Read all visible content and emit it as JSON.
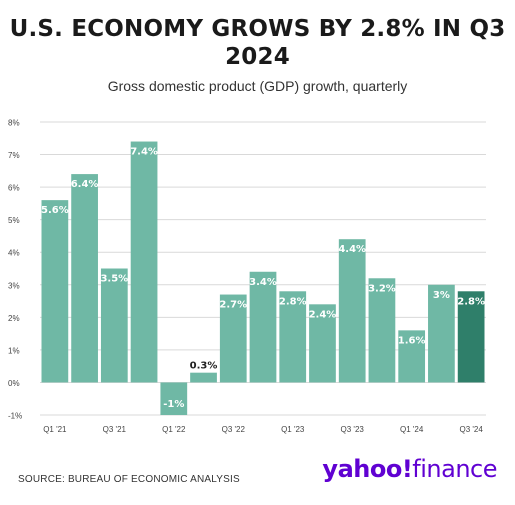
{
  "title": "U.S. ECONOMY GROWS BY 2.8% IN Q3 2024",
  "subtitle": "Gross domestic product (GDP) growth, quarterly",
  "source": "SOURCE: BUREAU OF ECONOMIC ANALYSIS",
  "logo": {
    "yahoo": "yahoo!",
    "finance": "finance"
  },
  "colors": {
    "bar": "#6fb8a5",
    "highlight": "#2f7f6a",
    "grid": "#d9d9d9"
  },
  "chart_data": {
    "type": "bar",
    "categories": [
      "Q1 '21",
      "Q2 '21",
      "Q3 '21",
      "Q4 '21",
      "Q1 '22",
      "Q2 '22",
      "Q3 '22",
      "Q4 '22",
      "Q1 '23",
      "Q2 '23",
      "Q3 '23",
      "Q4 '23",
      "Q1 '24",
      "Q2 '24",
      "Q3 '24"
    ],
    "values": [
      5.6,
      6.4,
      3.5,
      7.4,
      -1,
      0.3,
      2.7,
      3.4,
      2.8,
      2.4,
      4.4,
      3.2,
      1.6,
      3,
      2.8
    ],
    "data_labels": [
      "5.6%",
      "6.4%",
      "3.5%",
      "7.4%",
      "-1%",
      "0.3%",
      "2.7%",
      "3.4%",
      "2.8%",
      "2.4%",
      "4.4%",
      "3.2%",
      "1.6%",
      "3%",
      "2.8%"
    ],
    "x_tick_labels": [
      "Q1 '21",
      "Q3 '21",
      "Q1 '22",
      "Q3 '22",
      "Q1 '23",
      "Q3 '23",
      "Q1 '24",
      "Q3 '24"
    ],
    "y_ticks": [
      -1,
      0,
      1,
      2,
      3,
      4,
      5,
      6,
      7,
      8
    ],
    "y_tick_labels": [
      "-1%",
      "0%",
      "1%",
      "2%",
      "3%",
      "4%",
      "5%",
      "6%",
      "7%",
      "8%"
    ],
    "ylim": [
      -1,
      8
    ],
    "highlight_index": 14,
    "grid": true
  }
}
